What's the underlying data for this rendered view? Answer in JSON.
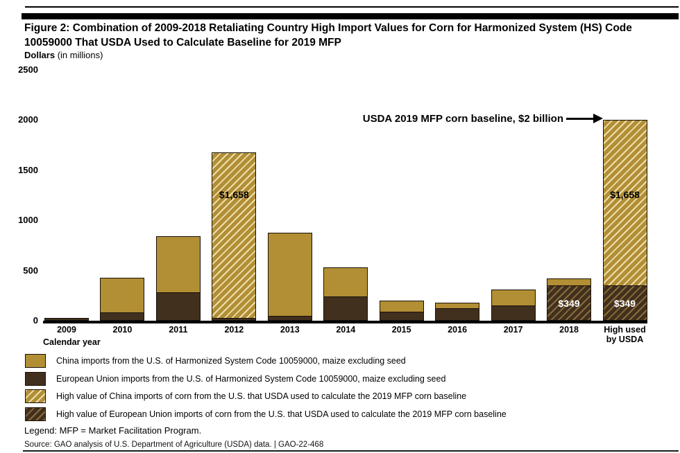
{
  "header": {
    "title_lines": [
      "Figure 2: Combination of 2009-2018 Retaliating Country High Import Values for Corn for Harmonized System (HS) Code",
      "10059000 That USDA Used to Calculate Baseline for 2019 MFP"
    ],
    "unit_label_bold": "Dollars",
    "unit_label_rest": " (in millions)"
  },
  "annotation": {
    "text": "USDA 2019 MFP corn baseline, $2 billion"
  },
  "chart_data": {
    "type": "bar",
    "stacked": true,
    "title": "Combination of 2009-2018 Retaliating Country High Import Values for Corn for Harmonized System (HS) Code 10059000 That USDA Used to Calculate Baseline for 2019 MFP",
    "ylabel": "Dollars (in millions)",
    "xlabel": "Calendar year",
    "ylim": [
      0,
      2500
    ],
    "y_ticks": [
      0,
      500,
      1000,
      1500,
      2000,
      2500
    ],
    "grid": false,
    "legend_position": "bottom",
    "categories": [
      "2009",
      "2010",
      "2011",
      "2012",
      "2013",
      "2014",
      "2015",
      "2016",
      "2017",
      "2018",
      "High used by USDA"
    ],
    "x_tick_lines": [
      [
        "2009"
      ],
      [
        "2010"
      ],
      [
        "2011"
      ],
      [
        "2012"
      ],
      [
        "2013"
      ],
      [
        "2014"
      ],
      [
        "2015"
      ],
      [
        "2016"
      ],
      [
        "2017"
      ],
      [
        "2018"
      ],
      [
        "High used",
        "by USDA"
      ]
    ],
    "series": [
      {
        "name": "European Union imports from the U.S. of HS Code 10059000",
        "color_key": "eu",
        "values": [
          25,
          80,
          280,
          30,
          50,
          240,
          90,
          125,
          150,
          349,
          349
        ]
      },
      {
        "name": "China imports from the U.S. of HS Code 10059000",
        "color_key": "china",
        "values": [
          0,
          350,
          565,
          1658,
          835,
          300,
          115,
          60,
          165,
          75,
          1658
        ]
      }
    ],
    "hatched_segments": {
      "china": [
        "2012",
        "High used by USDA"
      ],
      "eu": [
        "2018",
        "High used by USDA"
      ]
    },
    "bar_labels": [
      {
        "category": "2012",
        "series": "china",
        "text": "$1,658",
        "color": "#000000",
        "y_value": 1260
      },
      {
        "category": "2018",
        "series": "eu",
        "text": "$349",
        "color": "#ffffff",
        "y_value": 175
      },
      {
        "category": "High used by USDA",
        "series": "china",
        "text": "$1,658",
        "color": "#000000",
        "y_value": 1260
      },
      {
        "category": "High used by USDA",
        "series": "eu",
        "text": "$349",
        "color": "#ffffff",
        "y_value": 175
      }
    ],
    "annotation": "USDA 2019 MFP corn baseline, $2 billion"
  },
  "colors": {
    "china": "#b28e35",
    "eu": "#42301e",
    "china_hatch_stripe": "#ecdfae",
    "eu_hatch_stripe": "#8a6d3c",
    "bar_outline": "#16100a"
  },
  "legend": {
    "items": [
      {
        "style": "china",
        "label": "China imports from the U.S. of Harmonized System Code 10059000, maize excluding seed"
      },
      {
        "style": "eu",
        "label": "European Union imports from the U.S. of Harmonized System Code 10059000, maize excluding seed"
      },
      {
        "style": "china-hatch",
        "label": "High value of China imports of corn from the U.S. that USDA used to calculate the 2019 MFP corn baseline"
      },
      {
        "style": "eu-hatch",
        "label": "High value of European Union imports of corn from the U.S. that USDA used to calculate the 2019 MFP corn baseline"
      }
    ]
  },
  "footer": {
    "note": "Legend: MFP = Market Facilitation Program.",
    "source": "Source: GAO analysis of U.S. Department of Agriculture (USDA) data.  |  GAO-22-468"
  }
}
